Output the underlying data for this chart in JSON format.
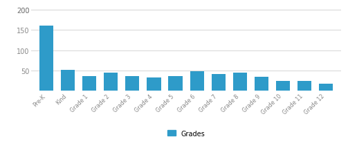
{
  "categories": [
    "Pre-K",
    "Kind",
    "Grade 1",
    "Grade 2",
    "Grade 3",
    "Grade 4",
    "Grade 5",
    "Grade 6",
    "Grade 7",
    "Grade 8",
    "Grade 9",
    "Grade 10",
    "Grade 11",
    "Grade 12"
  ],
  "values": [
    160,
    52,
    36,
    44,
    37,
    32,
    37,
    49,
    42,
    45,
    34,
    24,
    25,
    17
  ],
  "bar_color": "#2e9bc9",
  "ylim": [
    0,
    210
  ],
  "yticks": [
    50,
    100,
    150,
    200
  ],
  "ytick_top": 200,
  "legend_label": "Grades",
  "background_color": "#ffffff",
  "grid_color": "#d5d5d5",
  "tick_label_color": "#888888",
  "bar_width": 0.65
}
